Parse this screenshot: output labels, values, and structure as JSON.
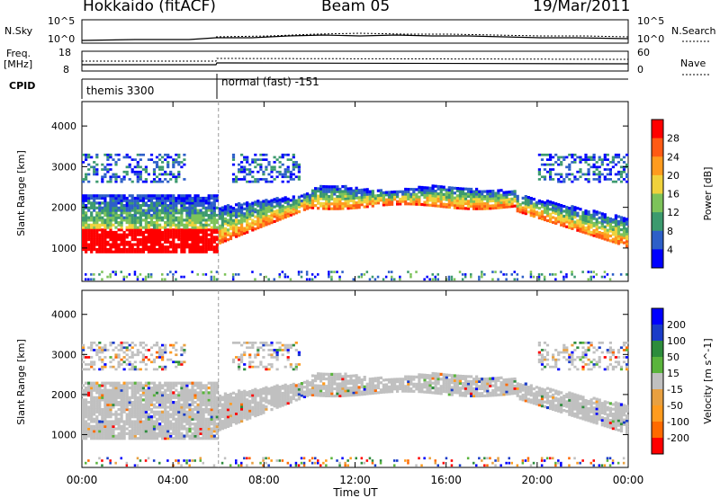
{
  "header": {
    "station": "Hokkaido (fitACF)",
    "beam": "Beam 05",
    "date": "19/Mar/2011"
  },
  "aux_panels": {
    "nsky_label": "N.Sky",
    "nsearch_label": "N.Search",
    "nsky_ticks": [
      "10^5",
      "10^0"
    ],
    "nsearch_ticks": [
      "10^5",
      "10^0"
    ],
    "freq_label_1": "Freq.",
    "freq_label_2": "[MHz]",
    "freq_ticks": [
      "18",
      "8"
    ],
    "nave_label": "Nave",
    "nave_ticks": [
      "60",
      "0"
    ],
    "cpid_label": "CPID",
    "cpid_segments": [
      {
        "name": "themis 3300",
        "start": "00:00",
        "end": "06:00"
      },
      {
        "name": "normal (fast) -151",
        "start": "06:00",
        "end": "24:00"
      }
    ]
  },
  "chart_data": [
    {
      "type": "heatmap",
      "title": "",
      "parameter": "Power",
      "colorbar_label": "Power [dB]",
      "colorbar_ticks": [
        "28",
        "24",
        "20",
        "16",
        "12",
        "8",
        "4"
      ],
      "colorbar_colors": [
        "#0000ff",
        "#2d5fc8",
        "#3c9a6e",
        "#7dc35a",
        "#f0d23c",
        "#ff9b1e",
        "#ff5a14",
        "#ff0000"
      ],
      "xlabel": "Time UT",
      "ylabel": "Slant Range [km]",
      "xlim_hours": [
        0,
        24
      ],
      "ylim_km": [
        180,
        4600
      ],
      "x_ticks": [
        "00:00",
        "04:00",
        "08:00",
        "12:00",
        "16:00",
        "20:00",
        "00:00"
      ],
      "y_ticks": [
        "1000",
        "2000",
        "3000",
        "4000"
      ],
      "echo_regions": [
        {
          "time_start_h": 0.0,
          "time_end_h": 6.0,
          "range_low_km": 900,
          "range_high_km": 1400,
          "power_db": 28
        },
        {
          "time_start_h": 0.0,
          "time_end_h": 6.0,
          "range_low_km": 1400,
          "range_high_km": 2000,
          "power_db": 14
        },
        {
          "time_start_h": 6.0,
          "time_end_h": 10.0,
          "range_low_km": 1300,
          "range_high_km": 2000,
          "power_db": 18
        },
        {
          "time_start_h": 10.0,
          "time_end_h": 19.0,
          "range_low_km": 2000,
          "range_high_km": 2500,
          "power_db": 20
        },
        {
          "time_start_h": 19.0,
          "time_end_h": 24.0,
          "range_low_km": 1000,
          "range_high_km": 2000,
          "power_db": 18
        },
        {
          "time_start_h": 0.0,
          "time_end_h": 24.0,
          "range_low_km": 2600,
          "range_high_km": 3200,
          "power_db": 8
        }
      ]
    },
    {
      "type": "heatmap",
      "title": "",
      "parameter": "Velocity",
      "colorbar_label": "Velocity [m s^-1]",
      "colorbar_ticks": [
        "200",
        "100",
        "50",
        "15",
        "-15",
        "-50",
        "-100",
        "-200"
      ],
      "colorbar_colors": [
        "#ff0000",
        "#ff6a00",
        "#ff9b1e",
        "#e8a040",
        "#c0c0c0",
        "#5ab43c",
        "#2d8c3c",
        "#1a3cc8",
        "#0000ff"
      ],
      "xlabel": "Time UT",
      "ylabel": "Slant Range [km]",
      "xlim_hours": [
        0,
        24
      ],
      "ylim_km": [
        180,
        4600
      ],
      "x_ticks": [
        "00:00",
        "04:00",
        "08:00",
        "12:00",
        "16:00",
        "20:00",
        "00:00"
      ],
      "y_ticks": [
        "1000",
        "2000",
        "3000",
        "4000"
      ],
      "ground_scatter_color": "#c0c0c0"
    }
  ],
  "colors": {
    "ground_scatter": "#c0c0c0",
    "axis": "#000000"
  }
}
